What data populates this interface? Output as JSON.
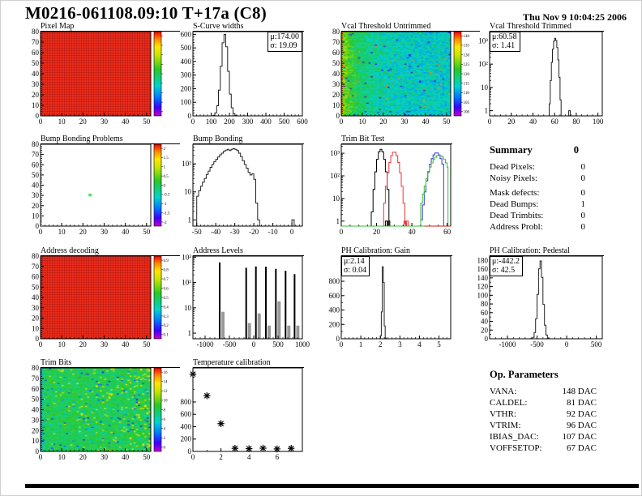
{
  "page": {
    "title": "M0216-061108.09:10 T+17a (C8)",
    "datetime": "Thu Nov  9 10:04:25 2006"
  },
  "summary": {
    "title": "Summary",
    "value": "0",
    "rows": [
      {
        "label": "Dead Pixels:",
        "value": "0"
      },
      {
        "label": "Noisy Pixels:",
        "value": "0"
      },
      {
        "label": "Mask defects:",
        "value": "0"
      },
      {
        "label": "Dead Bumps:",
        "value": "1"
      },
      {
        "label": "Dead Trimbits:",
        "value": "0"
      },
      {
        "label": "Address Probl:",
        "value": "0"
      }
    ]
  },
  "op_parameters": {
    "title": "Op. Parameters",
    "rows": [
      {
        "label": "VANA:",
        "value": "148 DAC"
      },
      {
        "label": "CALDEL:",
        "value": "81 DAC"
      },
      {
        "label": "VTHR:",
        "value": "92 DAC"
      },
      {
        "label": "VTRIM:",
        "value": "96 DAC"
      },
      {
        "label": "IBIAS_DAC:",
        "value": "107 DAC"
      },
      {
        "label": "VOFFSETOP:",
        "value": "67 DAC"
      }
    ]
  },
  "chart_data": [
    {
      "type": "heatmap",
      "title": "Pixel Map",
      "xlim": [
        0,
        52
      ],
      "ylim": [
        0,
        80
      ],
      "xticks": [
        0,
        10,
        20,
        30,
        40,
        50
      ],
      "yticks": [
        0,
        10,
        20,
        30,
        40,
        50,
        60,
        70,
        80
      ],
      "minor_x": 2,
      "minor_y": 2,
      "map": {
        "kind": "uniform",
        "fill": "#f5321e"
      },
      "colorbar": {
        "labels": []
      }
    },
    {
      "type": "histogram",
      "title": "S-Curve widths",
      "xlim": [
        0,
        600
      ],
      "xticks": [
        0,
        100,
        200,
        300,
        400,
        500,
        600
      ],
      "minor_x": 20,
      "ylim": [
        0,
        620
      ],
      "yticks": [
        0,
        100,
        200,
        300,
        400,
        500,
        600
      ],
      "minor_y": 20,
      "bin": 10,
      "cut": [
        80,
        300
      ],
      "gauss": {
        "mu": 174,
        "sigma": 19.09,
        "peak": 600
      },
      "stats": {
        "mu": "μ:174.00",
        "sigma": "σ: 19.09"
      }
    },
    {
      "type": "heatmap",
      "title": "Vcal Threshold Untrimmed",
      "xlim": [
        0,
        52
      ],
      "ylim": [
        0,
        80
      ],
      "xticks": [
        0,
        10,
        20,
        30,
        40,
        50
      ],
      "yticks": [
        0,
        10,
        20,
        30,
        40,
        50,
        60,
        70,
        80
      ],
      "minor_x": 2,
      "minor_y": 2,
      "map": {
        "kind": "noise",
        "base": 112,
        "left_boost": 14,
        "noise": 3,
        "range": [
          95,
          142
        ],
        "high_speck": {
          "value": 138,
          "p": 0.006
        },
        "low_speck": {
          "value": 100,
          "p": 0.012
        },
        "first_col": "high"
      },
      "colorbar": {
        "labels": [
          "140",
          "135",
          "130",
          "125",
          "120",
          "115",
          "110",
          "105",
          "100"
        ]
      }
    },
    {
      "type": "histogram",
      "title": "Vcal Threshold Trimmed",
      "log_y": true,
      "xlim": [
        0,
        104
      ],
      "xticks": [
        0,
        20,
        40,
        60,
        80,
        100
      ],
      "minor_x": 5,
      "ylim": [
        0.6,
        2500
      ],
      "yticks_log": [
        [
          1,
          "1"
        ],
        [
          10,
          "10"
        ],
        [
          100,
          "10²"
        ],
        [
          1000,
          "10³"
        ]
      ],
      "bin": 1,
      "cut": [
        54,
        68
      ],
      "gauss": {
        "mu": 60.58,
        "sigma": 1.41,
        "peak": 1300
      },
      "extra_bars": [
        [
          73,
          1,
          1.5
        ]
      ],
      "stats": {
        "mu": "μ:60.58",
        "sigma": "σ: 1.41"
      }
    },
    {
      "type": "heatmap",
      "title": "Bump Bonding Problems",
      "xlim": [
        0,
        52
      ],
      "ylim": [
        0,
        80
      ],
      "xticks": [
        0,
        10,
        20,
        30,
        40,
        50
      ],
      "yticks": [
        0,
        10,
        20,
        30,
        40,
        50,
        60,
        70,
        80
      ],
      "minor_x": 2,
      "minor_y": 2,
      "map": {
        "kind": "empty",
        "points": [
          {
            "x": 23,
            "y": 30,
            "color": "#3fe03f"
          }
        ]
      },
      "colorbar": {
        "labels": [
          "2",
          "1.5",
          "1",
          "0.5",
          "0",
          "-0.5",
          "-1",
          "-1.5",
          "-2"
        ]
      }
    },
    {
      "type": "histogram",
      "title": "Bump Bonding",
      "log_y": true,
      "xlim": [
        -52,
        5.5
      ],
      "xticks": [
        -50,
        -40,
        -30,
        -20,
        -10,
        0
      ],
      "minor_x": 2,
      "ylim": [
        0.6,
        500
      ],
      "yticks_log": [
        [
          1,
          "1"
        ],
        [
          10,
          "10"
        ],
        [
          100,
          "10²"
        ]
      ],
      "hist": {
        "x_start": -50,
        "bin_width": 1,
        "counts": [
          7,
          11,
          16,
          22,
          30,
          42,
          55,
          75,
          95,
          120,
          145,
          175,
          210,
          240,
          280,
          310,
          330,
          300,
          330,
          350,
          330,
          300,
          240,
          180,
          130,
          95,
          70,
          50,
          40,
          44,
          28,
          4,
          1
        ]
      },
      "extra_bars": [
        [
          0,
          1,
          1.2
        ]
      ]
    },
    {
      "type": "multi_histogram",
      "title": "Trim Bit Test",
      "log_y": true,
      "xlim": [
        0,
        62
      ],
      "xticks": [
        0,
        20,
        40,
        60
      ],
      "minor_x": 5,
      "ylim": [
        0.6,
        2500
      ],
      "yticks_log": [
        [
          1,
          "1"
        ],
        [
          10,
          "10"
        ],
        [
          100,
          "10²"
        ],
        [
          1000,
          "10³"
        ]
      ],
      "bin": 1,
      "series": [
        {
          "color": "#000000",
          "mu": 22.5,
          "sigma": 1.4,
          "peak": 1500,
          "cut": [
            16,
            27
          ],
          "extra_bars": [
            [
              25,
              1,
              1
            ],
            [
              26.5,
              1,
              1
            ]
          ]
        },
        {
          "color": "#ee3333",
          "mu": 30,
          "sigma": 1.7,
          "peak": 1150,
          "cut": [
            24,
            38
          ],
          "extra_bars": [
            [
              35.5,
              1,
              1
            ],
            [
              37,
              1,
              1
            ]
          ]
        },
        {
          "color": "#3333dd",
          "mu": 54,
          "sigma": 2.3,
          "peak": 1050,
          "cut": [
            44,
            58
          ]
        },
        {
          "color": "#33bb33",
          "mu": 55.5,
          "sigma": 3.2,
          "peak": 820,
          "cut": [
            45,
            60.5
          ]
        }
      ]
    },
    {
      "type": "heatmap",
      "title": "Address decoding",
      "xlim": [
        0,
        52
      ],
      "ylim": [
        0,
        80
      ],
      "xticks": [
        0,
        10,
        20,
        30,
        40,
        50
      ],
      "yticks": [
        0,
        10,
        20,
        30,
        40,
        50,
        60,
        70,
        80
      ],
      "minor_x": 2,
      "minor_y": 2,
      "map": {
        "kind": "uniform",
        "fill": "#f5321e"
      },
      "colorbar": {
        "labels": [
          "0.9",
          "0.8",
          "0.7",
          "0.6",
          "0.5",
          "0.4",
          "0.3",
          "0.2",
          "0.1"
        ]
      }
    },
    {
      "type": "spikes",
      "title": "Address Levels",
      "log_y": true,
      "xlim": [
        -1250,
        1000
      ],
      "xticks": [
        -1000,
        -500,
        0,
        500,
        1000
      ],
      "minor_x": 100,
      "ylim": [
        0.6,
        1100
      ],
      "yticks_log": [
        [
          1,
          "1"
        ],
        [
          10,
          "10"
        ],
        [
          100,
          "10²"
        ],
        [
          1000,
          "10³"
        ]
      ],
      "spikes": [
        [
          -700,
          620,
          7
        ],
        [
          -155,
          380,
          2.5
        ],
        [
          45,
          430,
          6
        ],
        [
          250,
          420,
          2
        ],
        [
          455,
          345,
          18
        ],
        [
          655,
          290,
          2
        ],
        [
          840,
          215,
          2
        ]
      ]
    },
    {
      "type": "histogram",
      "title": "PH Calibration: Gain",
      "xlim": [
        0,
        5.6
      ],
      "xticks": [
        0,
        1,
        2,
        3,
        4,
        5
      ],
      "minor_x": 0.2,
      "ylim": [
        0,
        1150
      ],
      "yticks": [
        0,
        200,
        400,
        600,
        800
      ],
      "minor_y": 100,
      "bin": 0.05,
      "cut": [
        1.7,
        2.6
      ],
      "gauss": {
        "mu": 2.14,
        "sigma": 0.045,
        "peak": 1060
      },
      "stats": {
        "mu": "μ:2.14",
        "sigma": "σ: 0.04"
      }
    },
    {
      "type": "histogram",
      "title": "PH Calibration: Pedestal",
      "xlim": [
        -1300,
        600
      ],
      "xticks": [
        -1000,
        -500,
        0,
        500
      ],
      "minor_x": 100,
      "ylim": [
        0,
        190
      ],
      "yticks": [
        0,
        20,
        40,
        60,
        80,
        100,
        120,
        140,
        160,
        180
      ],
      "minor_y": 10,
      "bin": 25,
      "cut": [
        -650,
        -250
      ],
      "gauss": {
        "mu": -442.2,
        "sigma": 42.5,
        "peak": 180
      },
      "stats": {
        "mu": "μ:-442.2",
        "sigma": "σ: 42.5"
      }
    },
    {
      "type": "heatmap",
      "title": "Trim Bits",
      "xlim": [
        0,
        52
      ],
      "ylim": [
        0,
        80
      ],
      "xticks": [
        0,
        10,
        20,
        30,
        40,
        50
      ],
      "yticks": [
        0,
        10,
        20,
        30,
        40,
        50,
        60,
        70,
        80
      ],
      "minor_x": 2,
      "minor_y": 2,
      "map": {
        "kind": "noise",
        "base": 8,
        "left_boost": 0,
        "noise": 0.9,
        "range": [
          0,
          16
        ],
        "high_speck": {
          "value": 12.5,
          "p": 0.045,
          "right_bias": true
        },
        "low_speck": {
          "value": 3,
          "p": 0.03
        },
        "first_col": "low"
      },
      "colorbar": {
        "labels": [
          "16",
          "14",
          "12",
          "10",
          "8",
          "6",
          "4",
          "2",
          "0"
        ]
      }
    },
    {
      "type": "scatter",
      "title": "Temperature calibration",
      "xlim": [
        0,
        7.8
      ],
      "xticks": [
        0,
        2,
        4,
        6
      ],
      "minor_x": 1,
      "ylim": [
        0,
        1350
      ],
      "yticks": [
        0,
        200,
        400,
        600,
        800
      ],
      "minor_y": 200,
      "points": [
        [
          0,
          1250
        ],
        [
          1,
          900
        ],
        [
          2,
          450
        ],
        [
          3,
          50
        ],
        [
          4,
          45
        ],
        [
          5,
          52
        ],
        [
          6,
          40
        ],
        [
          7,
          50
        ]
      ]
    }
  ]
}
